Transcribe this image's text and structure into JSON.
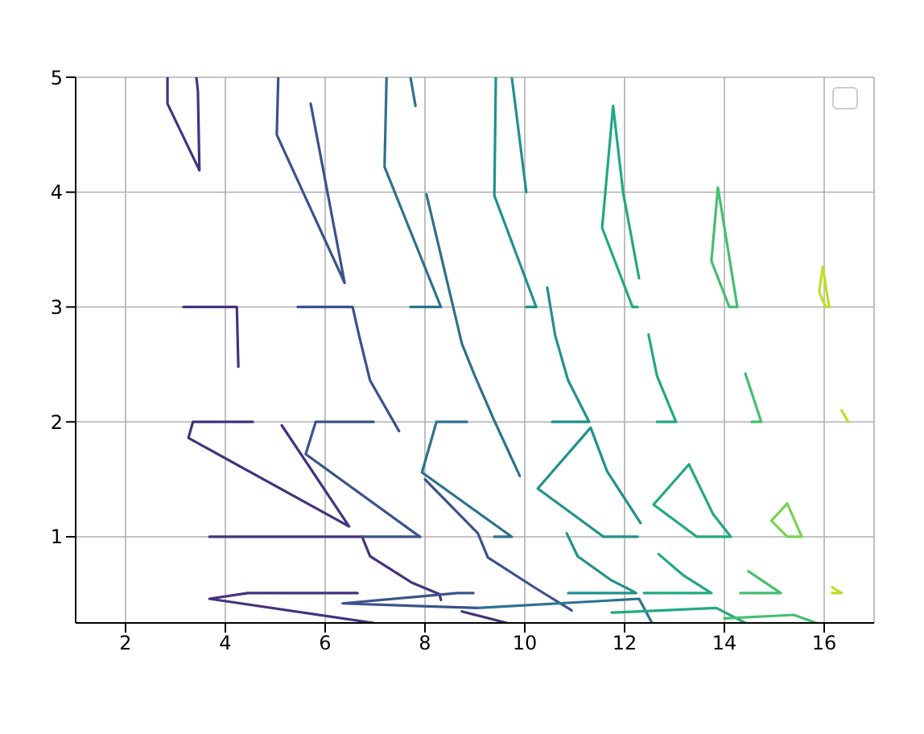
{
  "chart_data": {
    "type": "line",
    "xlim": [
      1,
      17
    ],
    "ylim": [
      0.25,
      5
    ],
    "xticks": [
      2,
      4,
      6,
      8,
      10,
      12,
      14,
      16
    ],
    "yticks": [
      1,
      2,
      3,
      4,
      5
    ],
    "grid": true,
    "marker": "none",
    "line_style": "solid",
    "series": [
      {
        "color": "#46327e",
        "x": [
          2.84,
          2.84,
          3.48,
          3.45,
          3.42
        ],
        "values": [
          5,
          4.77,
          4.19,
          4.88,
          5
        ]
      },
      {
        "color": "#46327e",
        "x": [
          3.16,
          4.23,
          4.26
        ],
        "values": [
          3,
          3,
          2.48
        ]
      },
      {
        "color": "#46327e",
        "x": [
          4.55,
          3.35,
          3.26,
          6.48,
          5.13
        ],
        "values": [
          2,
          2,
          1.86,
          1.09,
          1.97
        ]
      },
      {
        "color": "#46327e",
        "x": [
          3.68,
          6.74,
          6.9,
          7.74,
          8.29,
          8.32
        ],
        "values": [
          1,
          1,
          0.83,
          0.6,
          0.5,
          0.45
        ]
      },
      {
        "color": "#46327e",
        "x": [
          6.65,
          4.45,
          3.68,
          6.97
        ],
        "values": [
          0.51,
          0.51,
          0.46,
          0.25
        ]
      },
      {
        "color": "#46327e",
        "x": [
          8.74,
          9.64
        ],
        "values": [
          0.35,
          0.25
        ]
      },
      {
        "color": "#3b528b",
        "x": [
          5.71,
          6.39,
          5.03,
          5.06
        ],
        "values": [
          4.77,
          3.21,
          4.5,
          5
        ]
      },
      {
        "color": "#3b528b",
        "x": [
          5.45,
          6.55,
          6.68,
          6.9,
          7.48
        ],
        "values": [
          3,
          3,
          2.75,
          2.36,
          1.92
        ]
      },
      {
        "color": "#3b528b",
        "x": [
          6.97,
          5.81,
          5.61,
          7.9
        ],
        "values": [
          2,
          2,
          1.72,
          1
        ]
      },
      {
        "color": "#3b528b",
        "x": [
          6.74,
          7.9
        ],
        "values": [
          1,
          1
        ]
      },
      {
        "color": "#3b528b",
        "x": [
          8.0,
          9.06,
          9.26,
          10.19,
          10.94
        ],
        "values": [
          1.5,
          1.03,
          0.82,
          0.56,
          0.36
        ]
      },
      {
        "color": "#3b528b",
        "x": [
          8.97,
          8.65,
          6.35,
          9.06
        ],
        "values": [
          0.51,
          0.51,
          0.42,
          0.38
        ]
      },
      {
        "color": "#2c728e",
        "x": [
          7.23,
          7.19,
          8.32,
          7.71
        ],
        "values": [
          5,
          4.22,
          3,
          3
        ]
      },
      {
        "color": "#2c728e",
        "x": [
          7.71,
          7.81
        ],
        "values": [
          5,
          4.75
        ]
      },
      {
        "color": "#2c728e",
        "x": [
          8.03,
          8.74,
          9.0,
          9.39,
          9.9
        ],
        "values": [
          3.98,
          2.68,
          2.4,
          2.01,
          1.53
        ]
      },
      {
        "color": "#2c728e",
        "x": [
          8.84,
          8.23,
          7.94,
          9.74,
          9.39
        ],
        "values": [
          2,
          2,
          1.56,
          1,
          1
        ]
      },
      {
        "color": "#2c728e",
        "x": [
          9.06,
          12.29,
          12.55
        ],
        "values": [
          0.38,
          0.46,
          0.25
        ]
      },
      {
        "color": "#21918c",
        "x": [
          9.42,
          9.39,
          10.23,
          10.03
        ],
        "values": [
          5,
          3.97,
          3,
          3
        ]
      },
      {
        "color": "#21918c",
        "x": [
          9.74,
          10.03
        ],
        "values": [
          5,
          4
        ]
      },
      {
        "color": "#21918c",
        "x": [
          10.45,
          10.61,
          10.87,
          11.29,
          10.55
        ],
        "values": [
          3.17,
          2.75,
          2.36,
          2,
          2
        ]
      },
      {
        "color": "#21918c",
        "x": [
          12.32,
          11.65,
          11.32,
          10.26,
          11.58,
          12.26
        ],
        "values": [
          1.12,
          1.57,
          1.95,
          1.42,
          1,
          1
        ]
      },
      {
        "color": "#21918c",
        "x": [
          10.84,
          11.06,
          11.74,
          12.06,
          12.23,
          10.87
        ],
        "values": [
          1.03,
          0.83,
          0.62,
          0.55,
          0.51,
          0.51
        ]
      },
      {
        "color": "#22a884",
        "x": [
          12.29,
          11.97,
          11.77,
          11.55,
          12.16,
          12.26
        ],
        "values": [
          3.25,
          4,
          4.75,
          3.69,
          3,
          3
        ]
      },
      {
        "color": "#22a884",
        "x": [
          12.48,
          12.65,
          13.03,
          12.65
        ],
        "values": [
          2.76,
          2.4,
          2,
          2
        ]
      },
      {
        "color": "#22a884",
        "x": [
          14.13,
          13.45,
          12.58,
          13.29,
          13.77,
          14.13,
          14.05
        ],
        "values": [
          1,
          1,
          1.28,
          1.63,
          1.2,
          1,
          1
        ]
      },
      {
        "color": "#22a884",
        "x": [
          12.68,
          13.19,
          13.74,
          12.39
        ],
        "values": [
          0.85,
          0.66,
          0.51,
          0.51
        ]
      },
      {
        "color": "#22a884",
        "x": [
          11.74,
          13.84,
          14.42
        ],
        "values": [
          0.34,
          0.38,
          0.25
        ]
      },
      {
        "color": "#44bf70",
        "x": [
          14.26,
          14.1,
          13.74,
          13.87,
          14.26,
          14.2
        ],
        "values": [
          3,
          3,
          3.4,
          4.04,
          3,
          3
        ]
      },
      {
        "color": "#44bf70",
        "x": [
          14.42,
          14.74,
          14.55
        ],
        "values": [
          2.42,
          2,
          2
        ]
      },
      {
        "color": "#44bf70",
        "x": [
          14.48,
          15.13,
          14.32
        ],
        "values": [
          0.7,
          0.51,
          0.51
        ]
      },
      {
        "color": "#44bf70",
        "x": [
          14.0,
          15.39,
          15.84
        ],
        "values": [
          0.29,
          0.32,
          0.25
        ]
      },
      {
        "color": "#7ad151",
        "x": [
          15.55,
          15.26,
          14.94,
          15.26,
          15.55,
          15.5
        ],
        "values": [
          1,
          1,
          1.14,
          1.29,
          1,
          1
        ]
      },
      {
        "color": "#bddf26",
        "x": [
          16.1,
          16.03,
          15.9,
          15.97,
          16.1,
          16.07
        ],
        "values": [
          3,
          3,
          3.13,
          3.35,
          3,
          3
        ]
      },
      {
        "color": "#bddf26",
        "x": [
          16.35,
          16.48
        ],
        "values": [
          2.1,
          2
        ]
      },
      {
        "color": "#bddf26",
        "x": [
          16.16,
          16.35,
          16.16
        ],
        "values": [
          0.56,
          0.51,
          0.51
        ]
      }
    ]
  }
}
